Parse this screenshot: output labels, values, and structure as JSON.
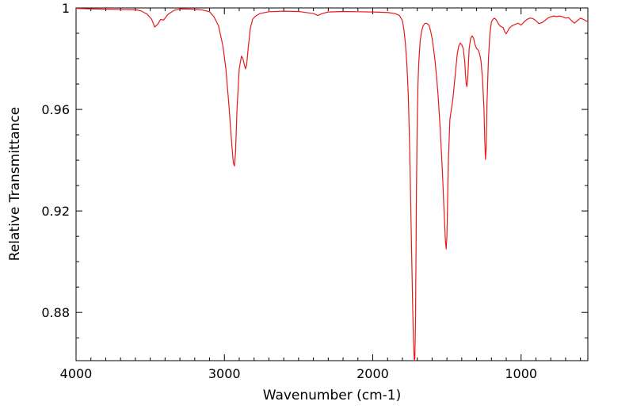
{
  "chart_data": {
    "type": "line",
    "title": "",
    "xlabel": "Wavenumber (cm-1)",
    "ylabel": "Relative Transmittance",
    "xlim": [
      4000,
      550
    ],
    "ylim": [
      0.861,
      1.0
    ],
    "x_reversed": true,
    "grid": false,
    "legend": "none",
    "x_ticks": [
      {
        "value": 4000,
        "label": "4000"
      },
      {
        "value": 3000,
        "label": "3000"
      },
      {
        "value": 2000,
        "label": "2000"
      },
      {
        "value": 1000,
        "label": "1000"
      }
    ],
    "y_ticks": [
      {
        "value": 1.0,
        "label": "1"
      },
      {
        "value": 0.96,
        "label": "0.96"
      },
      {
        "value": 0.92,
        "label": "0.92"
      },
      {
        "value": 0.88,
        "label": "0.88"
      }
    ],
    "series": [
      {
        "color": "#e8191b",
        "x": [
          4000,
          3900,
          3800,
          3700,
          3600,
          3560,
          3520,
          3490,
          3470,
          3450,
          3430,
          3410,
          3380,
          3340,
          3300,
          3200,
          3150,
          3100,
          3070,
          3040,
          3010,
          2990,
          2970,
          2950,
          2940,
          2932,
          2925,
          2915,
          2900,
          2885,
          2875,
          2865,
          2858,
          2850,
          2840,
          2825,
          2810,
          2790,
          2760,
          2700,
          2600,
          2500,
          2400,
          2370,
          2340,
          2300,
          2200,
          2100,
          2000,
          1900,
          1850,
          1820,
          1800,
          1790,
          1780,
          1770,
          1760,
          1750,
          1740,
          1730,
          1725,
          1720,
          1716,
          1712,
          1708,
          1705,
          1700,
          1695,
          1690,
          1685,
          1680,
          1670,
          1660,
          1650,
          1640,
          1630,
          1620,
          1610,
          1600,
          1590,
          1580,
          1570,
          1560,
          1545,
          1530,
          1520,
          1510,
          1505,
          1500,
          1495,
          1490,
          1480,
          1470,
          1460,
          1450,
          1440,
          1430,
          1420,
          1410,
          1400,
          1390,
          1380,
          1375,
          1370,
          1365,
          1360,
          1350,
          1340,
          1330,
          1320,
          1310,
          1300,
          1290,
          1280,
          1270,
          1260,
          1250,
          1245,
          1240,
          1235,
          1230,
          1220,
          1210,
          1200,
          1190,
          1180,
          1170,
          1160,
          1150,
          1140,
          1120,
          1110,
          1100,
          1080,
          1060,
          1040,
          1020,
          1000,
          980,
          960,
          940,
          920,
          900,
          880,
          860,
          840,
          820,
          800,
          780,
          760,
          740,
          720,
          700,
          680,
          660,
          640,
          620,
          600,
          580,
          560,
          550
        ],
        "y": [
          0.9998,
          0.9996,
          0.9995,
          0.9994,
          0.9993,
          0.9988,
          0.9975,
          0.9955,
          0.9925,
          0.9935,
          0.9955,
          0.9952,
          0.9975,
          0.999,
          0.9996,
          0.9995,
          0.9992,
          0.9985,
          0.9965,
          0.993,
          0.985,
          0.976,
          0.962,
          0.946,
          0.939,
          0.9377,
          0.943,
          0.96,
          0.976,
          0.981,
          0.98,
          0.9775,
          0.976,
          0.9775,
          0.984,
          0.992,
          0.9955,
          0.9968,
          0.9978,
          0.9985,
          0.9987,
          0.9986,
          0.9978,
          0.997,
          0.9978,
          0.9984,
          0.9986,
          0.9985,
          0.9984,
          0.9982,
          0.9978,
          0.997,
          0.995,
          0.9915,
          0.986,
          0.978,
          0.965,
          0.942,
          0.91,
          0.88,
          0.868,
          0.861,
          0.862,
          0.876,
          0.905,
          0.93,
          0.956,
          0.97,
          0.978,
          0.983,
          0.987,
          0.991,
          0.993,
          0.9938,
          0.994,
          0.9937,
          0.993,
          0.991,
          0.988,
          0.984,
          0.979,
          0.973,
          0.966,
          0.952,
          0.935,
          0.921,
          0.908,
          0.905,
          0.91,
          0.925,
          0.94,
          0.956,
          0.96,
          0.964,
          0.97,
          0.976,
          0.982,
          0.985,
          0.9862,
          0.9855,
          0.984,
          0.979,
          0.974,
          0.97,
          0.969,
          0.972,
          0.984,
          0.988,
          0.989,
          0.988,
          0.9855,
          0.984,
          0.9835,
          0.982,
          0.979,
          0.972,
          0.96,
          0.948,
          0.9403,
          0.945,
          0.962,
          0.98,
          0.99,
          0.9945,
          0.9955,
          0.996,
          0.9955,
          0.9945,
          0.9935,
          0.9928,
          0.9922,
          0.9905,
          0.9898,
          0.992,
          0.993,
          0.9935,
          0.994,
          0.9932,
          0.9945,
          0.9955,
          0.996,
          0.9958,
          0.995,
          0.9938,
          0.9942,
          0.995,
          0.996,
          0.9965,
          0.9968,
          0.9966,
          0.9968,
          0.9965,
          0.996,
          0.9962,
          0.995,
          0.994,
          0.995,
          0.996,
          0.9955,
          0.9948,
          0.9946
        ]
      }
    ]
  }
}
